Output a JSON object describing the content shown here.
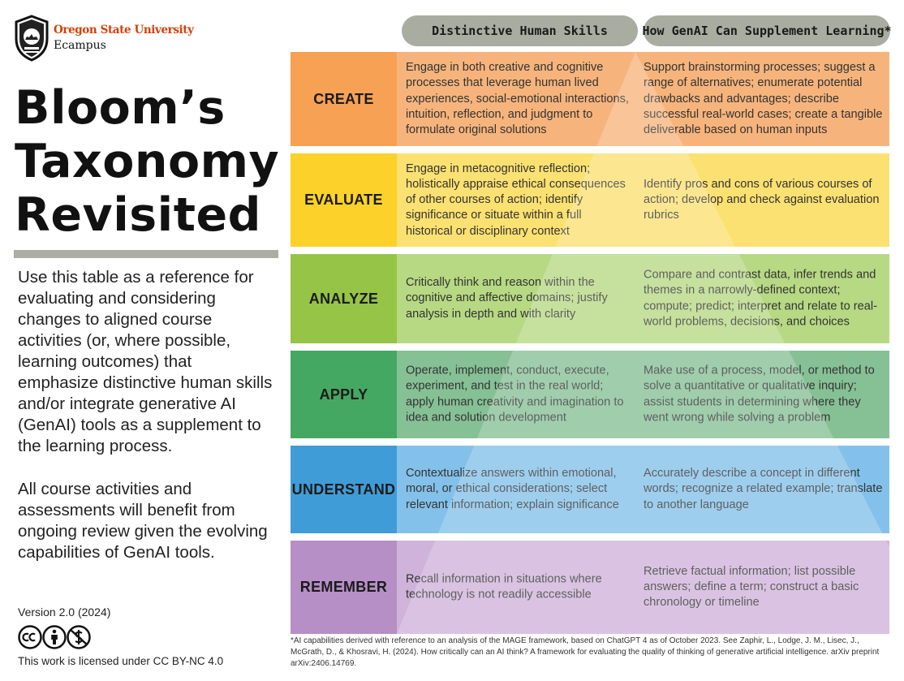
{
  "brand": {
    "university": "Oregon State University",
    "unit": "Ecampus",
    "accent_color": "#d73f09"
  },
  "title_lines": [
    "Bloom’s",
    "Taxonomy",
    "Revisited"
  ],
  "intro": "Use this table as a reference for evaluating and considering changes to aligned course activities (or, where possible, learning outcomes) that emphasize distinctive human skills and/or integrate generative AI (GenAI) tools as a supplement to the learning process.",
  "intro2": "All course activities and assessments will benefit from ongoing review given the evolving capabilities of GenAI tools.",
  "version": "Version 2.0 (2024)",
  "license_icons": [
    "cc-icon",
    "by-icon",
    "nc-icon"
  ],
  "license": "This work is licensed under CC BY-NC 4.0",
  "columns": {
    "human": "Distinctive Human Skills",
    "ai": "How GenAI Can Supplement Learning*"
  },
  "rows": [
    {
      "level": "CREATE",
      "level_color": "#f7a154",
      "human": "Engage in both creative and cognitive processes that leverage human lived experiences, social-emotional interactions, intuition, reflection, and judgment to formulate original solutions",
      "ai": "Support brainstorming processes; suggest a range of alternatives; enumerate potential drawbacks and advantages; describe successful real-world cases; create a tangible deliverable based on human inputs"
    },
    {
      "level": "EVALUATE",
      "level_color": "#fcd22a",
      "human": "Engage in metacognitive reflection; holistically appraise ethical consequences of other courses of action; identify significance or situate within a full historical or disciplinary context",
      "ai": "Identify pros and cons of various courses of action; develop and check against evaluation rubrics"
    },
    {
      "level": "ANALYZE",
      "level_color": "#95c447",
      "human": "Critically think and reason within the cognitive and affective domains; justify analysis in depth and with clarity",
      "ai": "Compare and contrast data, infer trends and themes in a narrowly-defined context; compute; predict; interpret and relate to real-world problems, decisions, and choices"
    },
    {
      "level": "APPLY",
      "level_color": "#45a862",
      "human": "Operate, implement, conduct, execute, experiment, and test in the real world; apply human creativity and imagination to idea and solution development",
      "ai": "Make use of a process, model, or method to solve a quantitative or qualitative inquiry; assist students in determining where they went wrong while solving a problem"
    },
    {
      "level": "UNDERSTAND",
      "level_color": "#409cd7",
      "human": "Contextualize answers within emotional, moral, or ethical considerations; select relevant information; explain significance",
      "ai": "Accurately describe a concept in different words; recognize a related example; translate to another language"
    },
    {
      "level": "REMEMBER",
      "level_color": "#b68fc6",
      "human": "Recall information in situations where technology is not readily accessible",
      "ai": "Retrieve factual information; list possible answers; define a term; construct a basic chronology or timeline"
    }
  ],
  "footnote": "*AI capabilities derived with reference to an analysis of the MAGE framework, based on ChatGPT 4 as of October 2023. See Zaphir, L., Lodge, J. M., Lisec, J., McGrath, D., & Khosravi, H. (2024). How critically can an AI think? A framework for evaluating the quality of thinking of generative artificial intelligence. arXiv preprint arXiv:2406.14769."
}
